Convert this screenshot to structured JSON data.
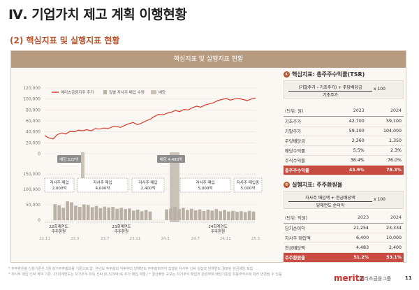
{
  "page": {
    "title": "Ⅳ. 기업가치 제고 계획 이행현황",
    "subtitle": "(2) 핵심지표 및 실행지표 현황",
    "panel_title": "핵심지표 및 실행지표 현황",
    "page_number": "11",
    "brand": "meritz",
    "brand_sub": "메리츠금융그룹"
  },
  "colors": {
    "accent": "#b8542d",
    "line": "#d8382b",
    "bar": "#b9b0a6",
    "highlight": "#c94c43"
  },
  "chart_data": [
    {
      "type": "line",
      "title": "메리츠금융지주 주가",
      "legend": [
        "메리츠금융지주 주가",
        "일별 자사주 매입 수량",
        "배당"
      ],
      "ylim": [
        0,
        120000
      ],
      "yticks": [
        "0",
        "20,000",
        "40,000",
        "60,000",
        "80,000",
        "100,000",
        "120,000"
      ],
      "x_ticks": [
        "22.11",
        "23.3",
        "23.7",
        "23.11",
        "24.3",
        "24.7",
        "24.11",
        "25.3"
      ],
      "series": [
        {
          "name": "메리츠금융지주 주가",
          "values": [
            33000,
            29000,
            27000,
            35000,
            38000,
            36000,
            41000,
            40000,
            43000,
            42000,
            44000,
            42000,
            46000,
            45000,
            47000,
            46000,
            49000,
            50000,
            48000,
            52000,
            55000,
            57000,
            53000,
            56000,
            60000,
            63000,
            68000,
            72000,
            71000,
            74000,
            76000,
            79000,
            77000,
            81000,
            80000,
            84000,
            87000,
            85000,
            89000,
            91000,
            93000,
            97000,
            99000,
            101000,
            98000,
            100000,
            101000,
            99000,
            97000,
            100000,
            102000
          ]
        }
      ],
      "dividend_labels": [
        {
          "text": "배당 127억"
        },
        {
          "text": "배당 4,483억"
        }
      ]
    },
    {
      "type": "bar",
      "title": "일별 자사주 매입 수량",
      "ylim": [
        0,
        150000
      ],
      "yticks": [
        "0",
        "50,000",
        "100,000",
        "150,000"
      ],
      "values": [
        0,
        0,
        52000,
        48000,
        40000,
        61000,
        58000,
        47000,
        43000,
        51000,
        49000,
        42000,
        46000,
        39000,
        44000,
        41000,
        43000,
        37000,
        40000,
        36000,
        38000,
        31000,
        34000,
        29000,
        33000,
        28000,
        0,
        0,
        0,
        35000,
        38000,
        43000,
        36000,
        40000,
        33000,
        37000,
        32000,
        35000,
        30000,
        34000,
        31000,
        36000,
        29000,
        33000,
        28000,
        30000,
        27000,
        29000,
        26000,
        30000,
        28000
      ],
      "program_boxes": [
        {
          "title": "자사주 매입",
          "value": "2,000억"
        },
        {
          "title": "자사주 매입",
          "value": "4,000억"
        },
        {
          "title": "자사주 매입",
          "value": "2,400억"
        },
        {
          "title": "자사주 매입",
          "value": "5,000억"
        },
        {
          "title": "자사주 매입중",
          "value": "5,000억"
        }
      ],
      "period_labels": [
        {
          "line1": "22회계연도",
          "line2": "주주환원"
        },
        {
          "line1": "23회계연도",
          "line2": "주주환원"
        },
        {
          "line1": "24회계연도",
          "line2": "주주환원"
        }
      ]
    }
  ],
  "tsr": {
    "title": "핵심지표: 총주주수익률(TSR)",
    "number": "①",
    "formula_top": "(기말주가 - 기초주가) + 주당배당금",
    "formula_bottom": "기초주가",
    "formula_mult": "x 100",
    "headers": [
      "(단위: 원)",
      "2023",
      "2024"
    ],
    "rows": [
      {
        "label": "기초주가",
        "v2023": "42,700",
        "v2024": "59,100"
      },
      {
        "label": "기말주가",
        "v2023": "59,100",
        "v2024": "104,000"
      },
      {
        "label": "주당배당금",
        "v2023": "2,360",
        "v2024": "1,350"
      },
      {
        "label": "배당수익률",
        "v2023": "5.5%",
        "v2024": "2.3%"
      },
      {
        "label": "주식수익률",
        "v2023": "38.4%",
        "v2024": "76.0%"
      },
      {
        "label": "총주주수익률",
        "v2023": "43.9%",
        "v2024": "78.3%"
      }
    ]
  },
  "payout": {
    "title": "실행지표: 주주환원율",
    "number": "②",
    "formula_top": "자사주 매입액 + 현금배당액",
    "formula_bottom": "당해연도 순이익",
    "formula_mult": "x 100",
    "headers": [
      "(단위: 억원)",
      "2023",
      "2024"
    ],
    "rows": [
      {
        "label": "당기순이익",
        "v2023": "21,254",
        "v2024": "23,334"
      },
      {
        "label": "자사주 매입액",
        "v2023": "6,400",
        "v2024": "10,000"
      },
      {
        "label": "현금배당액",
        "v2023": "4,483",
        "v2024": "2,400"
      },
      {
        "label": "주주환원율",
        "v2023": "51.2%",
        "v2024": "53.1%"
      }
    ]
  },
  "footnotes": [
    "* 주주환원율 산정기준은 3월 정기주주총회를 기준으로 함. 현년도 주주총회 익후부터 당해연도 주주총회까지 집행된 자사주 신탁 실집과 당해연도 결정된 현금배당 포함",
    "* 자사주 매입 신탁 계약 기준. 23회계연도는 자기주식 취득 신탁 (6,529억)로 추가 매입 체결 / * 결산배당 규모는 자기주식 매입과 관련하여 배당기준일 유동주식수에 따라 변경될 수 있음"
  ]
}
